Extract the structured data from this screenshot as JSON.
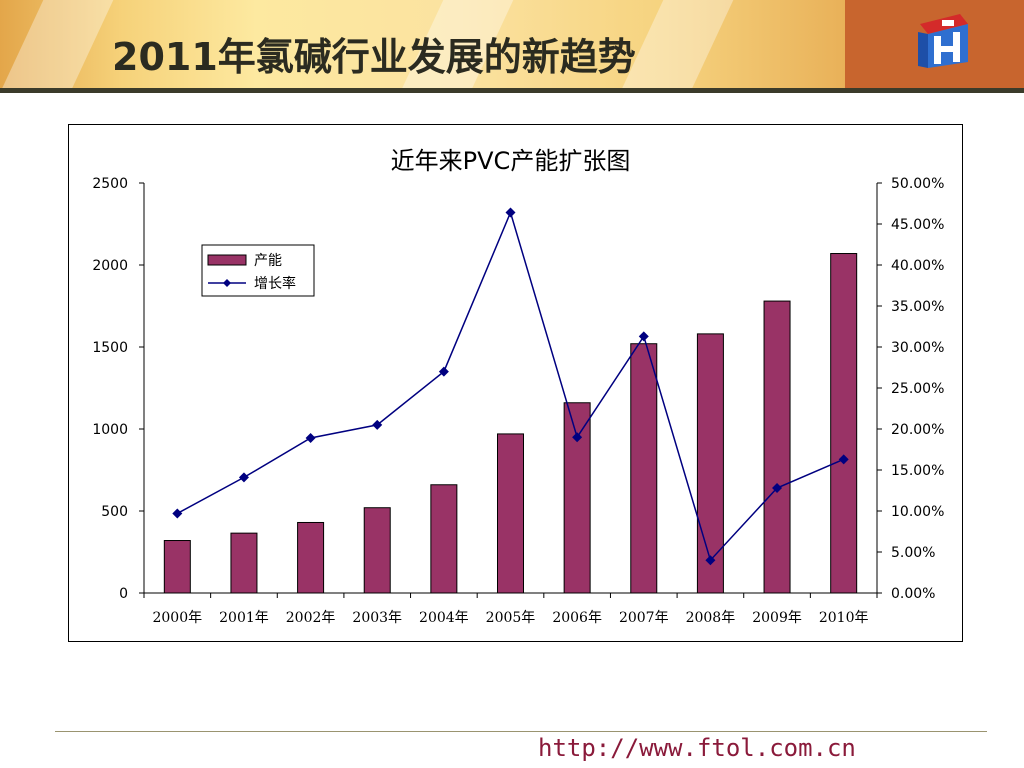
{
  "slide": {
    "title": "2011年氯碱行业发展的新趋势",
    "footer_url": "http://www.ftol.com.cn",
    "logo_icon": "company-logo-icon"
  },
  "colors": {
    "bar": "#993366",
    "line": "#000080",
    "title_text": "#2b2b20",
    "footer_text": "#8a1a3a"
  },
  "chart_data": {
    "type": "bar",
    "title": "近年来PVC产能扩张图",
    "categories": [
      "2000年",
      "2001年",
      "2002年",
      "2003年",
      "2004年",
      "2005年",
      "2006年",
      "2007年",
      "2008年",
      "2009年",
      "2010年"
    ],
    "series": [
      {
        "name": "产能",
        "type": "bar",
        "axis": "left",
        "values": [
          320,
          365,
          430,
          520,
          660,
          970,
          1160,
          1520,
          1580,
          1780,
          2070
        ]
      },
      {
        "name": "增长率",
        "type": "line",
        "axis": "right",
        "values": [
          0.097,
          0.141,
          0.189,
          0.205,
          0.27,
          0.464,
          0.19,
          0.313,
          0.04,
          0.128,
          0.163
        ]
      }
    ],
    "y_left": {
      "min": 0,
      "max": 2500,
      "ticks": [
        "0",
        "500",
        "1000",
        "1500",
        "2000",
        "2500"
      ]
    },
    "y_right": {
      "min": 0,
      "max": 0.5,
      "ticks": [
        "0.00%",
        "5.00%",
        "10.00%",
        "15.00%",
        "20.00%",
        "25.00%",
        "30.00%",
        "35.00%",
        "40.00%",
        "45.00%",
        "50.00%"
      ]
    },
    "legend": {
      "position": "top-left"
    },
    "grid": false
  }
}
